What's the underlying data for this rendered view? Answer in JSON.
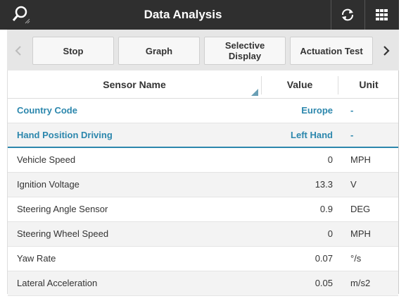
{
  "header": {
    "title": "Data Analysis"
  },
  "toolbar": {
    "buttons": [
      "Stop",
      "Graph",
      "Selective Display",
      "Actuation Test"
    ]
  },
  "table": {
    "columns": [
      "Sensor Name",
      "Value",
      "Unit"
    ],
    "rows": [
      [
        "Country Code",
        "Europe",
        "-"
      ],
      [
        "Hand Position Driving",
        "Left Hand",
        "-"
      ],
      [
        "Vehicle Speed",
        "0",
        "MPH"
      ],
      [
        "Ignition Voltage",
        "13.3",
        "V"
      ],
      [
        "Steering Angle Sensor",
        "0.9",
        "DEG"
      ],
      [
        "Steering Wheel Speed",
        "0",
        "MPH"
      ],
      [
        "Yaw Rate",
        "0.07",
        "°/s"
      ],
      [
        "Lateral Acceleration",
        "0.05",
        "m/s2"
      ]
    ]
  }
}
